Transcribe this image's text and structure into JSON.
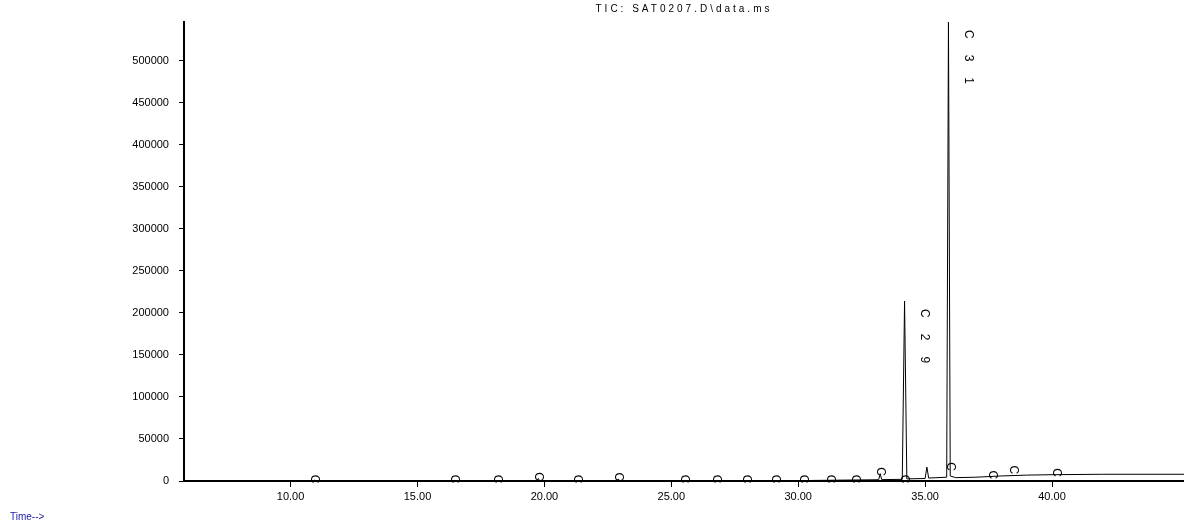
{
  "chart_data": {
    "type": "line",
    "title": "TIC: SAT0207.D\\data.ms",
    "x": [
      5.8,
      10.9,
      10.94,
      11.0,
      19.7,
      19.76,
      19.82,
      22.85,
      22.91,
      22.97,
      30,
      33.17,
      33.23,
      33.29,
      34.1,
      34.19,
      34.28,
      35.0,
      35.07,
      35.14,
      35.85,
      35.92,
      35.99,
      36.2,
      37,
      38,
      39,
      40,
      42,
      45.2
    ],
    "series": [
      {
        "color": "#000000",
        "values": [
          0,
          0,
          1000,
          0,
          0,
          3000,
          0,
          0,
          2500,
          0,
          500,
          1500,
          8700,
          1600,
          2000,
          214000,
          2500,
          3000,
          16500,
          3500,
          4500,
          546000,
          6000,
          4000,
          4500,
          6000,
          7000,
          7500,
          8000,
          8000
        ]
      }
    ],
    "xlim": [
      5.8,
      45.2
    ],
    "xticks": [
      {
        "value": 10,
        "label": "10.00"
      },
      {
        "value": 15,
        "label": "15.00"
      },
      {
        "value": 20,
        "label": "20.00"
      },
      {
        "value": 25,
        "label": "25.00"
      },
      {
        "value": 30,
        "label": "30.00"
      },
      {
        "value": 35,
        "label": "35.00"
      },
      {
        "value": 40,
        "label": "40.00"
      }
    ],
    "ylim": [
      0,
      546000
    ],
    "yticks": [
      0,
      50000,
      100000,
      150000,
      200000,
      250000,
      300000,
      350000,
      400000,
      450000,
      500000
    ],
    "grid": false,
    "legend": false,
    "marker": "none",
    "line_style": "solid",
    "annotations": [
      "Time-->",
      {
        "text": "C29",
        "x": 34.19,
        "y": 214000
      },
      {
        "text": "C31",
        "x": 35.92,
        "y": 546000
      },
      {
        "text": "C",
        "x": 10.94,
        "y": 0
      },
      {
        "text": "C",
        "x": 16.46,
        "y": 0
      },
      {
        "text": "C",
        "x": 18.15,
        "y": 0
      },
      {
        "text": "C",
        "x": 19.76,
        "y": 3000
      },
      {
        "text": "C",
        "x": 21.3,
        "y": 0
      },
      {
        "text": "C",
        "x": 22.91,
        "y": 2500
      },
      {
        "text": "C",
        "x": 25.51,
        "y": 0
      },
      {
        "text": "C",
        "x": 26.77,
        "y": 0
      },
      {
        "text": "C",
        "x": 27.95,
        "y": 0
      },
      {
        "text": "C",
        "x": 29.09,
        "y": 0
      },
      {
        "text": "C",
        "x": 30.2,
        "y": 0
      },
      {
        "text": "C",
        "x": 31.26,
        "y": 0
      },
      {
        "text": "C",
        "x": 32.24,
        "y": 0
      },
      {
        "text": "C",
        "x": 33.23,
        "y": 8700
      },
      {
        "text": "C",
        "x": 34.17,
        "y": 0
      },
      {
        "text": "C",
        "x": 35.98,
        "y": 14700
      },
      {
        "text": "C",
        "x": 37.64,
        "y": 5000
      },
      {
        "text": "C",
        "x": 38.46,
        "y": 11000
      },
      {
        "text": "C",
        "x": 40.16,
        "y": 7500
      }
    ]
  }
}
